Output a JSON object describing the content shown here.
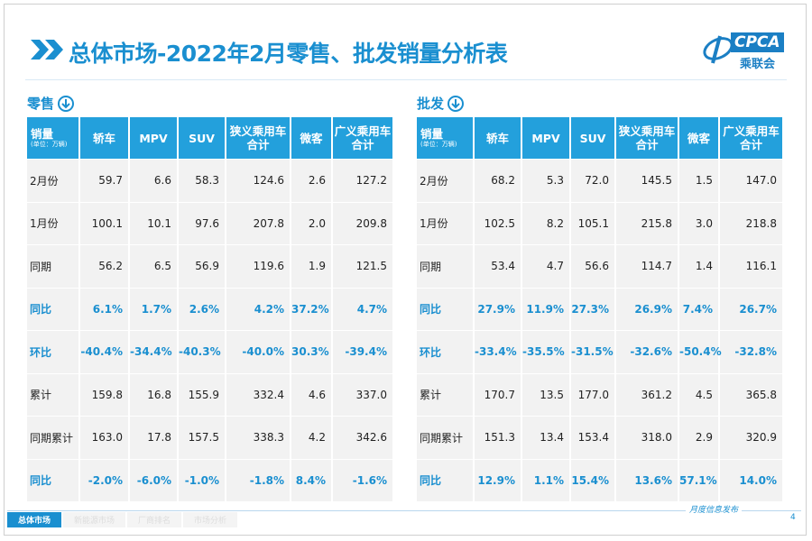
{
  "header": {
    "title": "总体市场-2022年2月零售、批发销量分析表",
    "logo": "CPCA",
    "logo_sub": "乘联会"
  },
  "tables": [
    {
      "label": "零售",
      "unit_header": "销量",
      "unit": "(单位：万辆)",
      "columns": [
        "轿车",
        "MPV",
        "SUV",
        "狭义乘用车\n合计",
        "微客",
        "广义乘用车\n合计"
      ],
      "rows": [
        {
          "label": "2月份",
          "cells": [
            "59.7",
            "6.6",
            "58.3",
            "124.6",
            "2.6",
            "127.2"
          ]
        },
        {
          "label": "1月份",
          "cells": [
            "100.1",
            "10.1",
            "97.6",
            "207.8",
            "2.0",
            "209.8"
          ]
        },
        {
          "label": "同期",
          "cells": [
            "56.2",
            "6.5",
            "56.9",
            "119.6",
            "1.9",
            "121.5"
          ]
        },
        {
          "label": "同比",
          "cells": [
            "6.1%",
            "1.7%",
            "2.6%",
            "4.2%",
            "37.2%",
            "4.7%"
          ]
        },
        {
          "label": "环比",
          "cells": [
            "-40.4%",
            "-34.4%",
            "-40.3%",
            "-40.0%",
            "30.3%",
            "-39.4%"
          ]
        },
        {
          "label": "累计",
          "cells": [
            "159.8",
            "16.8",
            "155.9",
            "332.4",
            "4.6",
            "337.0"
          ]
        },
        {
          "label": "同期累计",
          "cells": [
            "163.0",
            "17.8",
            "157.5",
            "338.3",
            "4.2",
            "342.6"
          ]
        },
        {
          "label": "同比",
          "cells": [
            "-2.0%",
            "-6.0%",
            "-1.0%",
            "-1.8%",
            "8.4%",
            "-1.6%"
          ]
        }
      ]
    },
    {
      "label": "批发",
      "unit_header": "销量",
      "unit": "(单位：万辆)",
      "columns": [
        "轿车",
        "MPV",
        "SUV",
        "狭义乘用车\n合计",
        "微客",
        "广义乘用车\n合计"
      ],
      "rows": [
        {
          "label": "2月份",
          "cells": [
            "68.2",
            "5.3",
            "72.0",
            "145.5",
            "1.5",
            "147.0"
          ]
        },
        {
          "label": "1月份",
          "cells": [
            "102.5",
            "8.2",
            "105.1",
            "215.8",
            "3.0",
            "218.8"
          ]
        },
        {
          "label": "同期",
          "cells": [
            "53.4",
            "4.7",
            "56.6",
            "114.7",
            "1.4",
            "116.1"
          ]
        },
        {
          "label": "同比",
          "cells": [
            "27.9%",
            "11.9%",
            "27.3%",
            "26.9%",
            "7.4%",
            "26.7%"
          ]
        },
        {
          "label": "环比",
          "cells": [
            "-33.4%",
            "-35.5%",
            "-31.5%",
            "-32.6%",
            "-50.4%",
            "-32.8%"
          ]
        },
        {
          "label": "累计",
          "cells": [
            "170.7",
            "13.5",
            "177.0",
            "361.2",
            "4.5",
            "365.8"
          ]
        },
        {
          "label": "同期累计",
          "cells": [
            "151.3",
            "13.4",
            "153.4",
            "318.0",
            "2.9",
            "320.9"
          ]
        },
        {
          "label": "同比",
          "cells": [
            "12.9%",
            "1.1%",
            "15.4%",
            "13.6%",
            "57.1%",
            "14.0%"
          ]
        }
      ]
    }
  ],
  "footer": {
    "tabs": [
      "总体市场",
      "新能源市场",
      "厂商排名",
      "市场分析"
    ],
    "publication": "月度信息发布",
    "page": "4"
  }
}
